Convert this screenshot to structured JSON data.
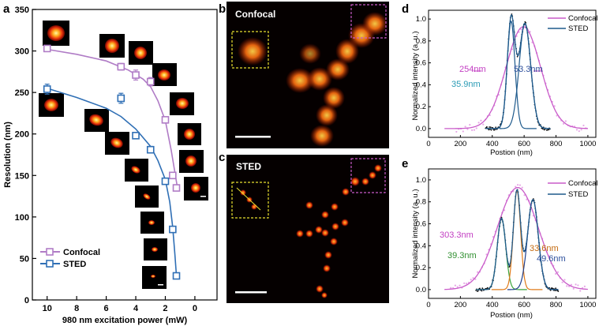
{
  "colors": {
    "confocal_a": "#b07cc6",
    "sted_a": "#2f6fb5",
    "confocal_de": "#c95bc9",
    "sted_de": "#1e5a8c",
    "peak_green": "#3aa33a",
    "peak_orange": "#e07b1a",
    "peak_navy": "#1f3f8c",
    "label_cyan": "#2a9bb5",
    "label_magenta": "#c23ec2",
    "label_green": "#2f8f2f",
    "label_orange": "#c46a10",
    "label_blue": "#2c4f9c",
    "dashed_yellow": "#e8e030",
    "dashed_magenta": "#c85ac8"
  },
  "panels": {
    "a": "a",
    "b": "b",
    "c": "c",
    "d": "d",
    "e": "e"
  },
  "images": {
    "b_title": "Confocal",
    "c_title": "STED"
  },
  "chart_data": [
    {
      "id": "a",
      "type": "line",
      "xlabel": "980 nm excitation power (mW)",
      "ylabel": "Resolution (nm)",
      "xlim": [
        11,
        -1.5
      ],
      "ylim": [
        0,
        350
      ],
      "xticks": [
        10,
        8,
        6,
        4,
        2,
        0
      ],
      "yticks": [
        0,
        50,
        100,
        150,
        200,
        250,
        300,
        350
      ],
      "legend": "bottom-left",
      "series": [
        {
          "name": "Confocal",
          "marker": "square-open",
          "x": [
            10,
            5,
            4,
            3,
            2,
            1.5,
            1.25
          ],
          "y": [
            303,
            281,
            271,
            263,
            217,
            150,
            135
          ],
          "err": [
            3,
            4,
            6,
            5,
            3,
            3,
            3
          ],
          "fit": [
            [
              10,
              302
            ],
            [
              8,
              296
            ],
            [
              6,
              288
            ],
            [
              4.5,
              277
            ],
            [
              3.5,
              266
            ],
            [
              3,
              257
            ],
            [
              2.5,
              240
            ],
            [
              2,
              216
            ],
            [
              1.6,
              180
            ],
            [
              1.3,
              148
            ],
            [
              1.15,
              132
            ]
          ]
        },
        {
          "name": "STED",
          "marker": "square-open",
          "x": [
            10,
            5,
            4,
            3,
            2,
            1.5,
            1.25
          ],
          "y": [
            254,
            243,
            198,
            181,
            143,
            85,
            29
          ],
          "err": [
            6,
            6,
            3,
            4,
            3,
            3,
            3
          ],
          "fit": [
            [
              10,
              255
            ],
            [
              8,
              244
            ],
            [
              6,
              231
            ],
            [
              5,
              221
            ],
            [
              4,
              206
            ],
            [
              3,
              185
            ],
            [
              2.5,
              168
            ],
            [
              2,
              145
            ],
            [
              1.7,
              118
            ],
            [
              1.5,
              88
            ],
            [
              1.35,
              55
            ],
            [
              1.25,
              30
            ]
          ]
        }
      ]
    },
    {
      "id": "d",
      "type": "line",
      "xlabel": "Postion (nm)",
      "ylabel": "Normalized intensity (a. u.)",
      "xlim": [
        0,
        1050
      ],
      "ylim": [
        -0.08,
        1.08
      ],
      "xticks": [
        0,
        200,
        400,
        600,
        800,
        1000
      ],
      "yticks": [
        0.0,
        0.2,
        0.4,
        0.6,
        0.8,
        1.0
      ],
      "legend": "top-right",
      "series": [
        {
          "name": "Confocal",
          "center": 595,
          "fwhm": 254,
          "amplitude": 0.93
        },
        {
          "name": "STED",
          "peaks": [
            {
              "center": 518,
              "fwhm": 35.9,
              "amplitude": 0.98
            },
            {
              "center": 605,
              "fwhm": 53.3,
              "amplitude": 0.96
            }
          ]
        }
      ],
      "annotations": [
        "254nm",
        "53.3nm",
        "35.9nm"
      ]
    },
    {
      "id": "e",
      "type": "line",
      "xlabel": "Postion (nm)",
      "ylabel": "Normalized intensity (a. u.)",
      "xlim": [
        0,
        1050
      ],
      "ylim": [
        -0.08,
        1.1
      ],
      "xticks": [
        0,
        200,
        400,
        600,
        800,
        1000
      ],
      "yticks": [
        0.0,
        0.2,
        0.4,
        0.6,
        0.8,
        1.0
      ],
      "legend": "top-right",
      "series": [
        {
          "name": "Confocal",
          "center": 560,
          "fwhm": 303.3,
          "amplitude": 0.93
        },
        {
          "name": "STED",
          "peaks": [
            {
              "center": 458,
              "fwhm": 39.3,
              "amplitude": 0.65
            },
            {
              "center": 555,
              "fwhm": 33.6,
              "amplitude": 0.9
            },
            {
              "center": 655,
              "fwhm": 49.6,
              "amplitude": 0.82
            }
          ]
        }
      ],
      "annotations": [
        "303.3nm",
        "33.6nm",
        "39.3nm",
        "49.6nm"
      ]
    }
  ]
}
